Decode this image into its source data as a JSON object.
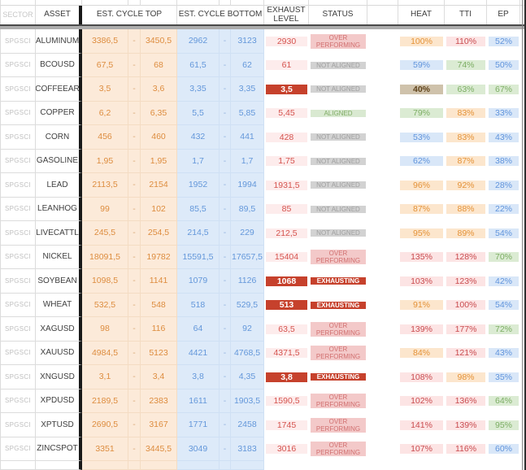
{
  "columns": {
    "sector": "SECTOR",
    "asset": "ASSET",
    "cycle_top": "EST. CYCLE TOP",
    "cycle_bottom": "EST. CYCLE BOTTOM",
    "exhaust": "EXHAUST LEVEL",
    "status": "STATUS",
    "heat": "HEAT",
    "tti": "TTI",
    "ep": "EP"
  },
  "colors": {
    "cycle_top_bg": "#fcead9",
    "cycle_top_text": "#dd8c3e",
    "cycle_bottom_bg": "#ddeaf9",
    "cycle_bottom_text": "#6397da",
    "exhaust_bg": "#fdecec",
    "exhaust_text": "#d5534e",
    "exhaust_alert_bg": "#c6412c",
    "exhaust_alert_text": "#ffffff",
    "status_over_bg": "#f3c9c9",
    "status_over_text": "#d17070",
    "status_not_aligned_bg": "#d2d2d2",
    "status_not_aligned_text": "#9f9f9f",
    "status_aligned_bg": "#d9e9d1",
    "status_aligned_text": "#80ac66",
    "pct_blue_bg": "#d9e7f8",
    "pct_blue_text": "#6094dc",
    "pct_orange_bg": "#fce6cd",
    "pct_orange_text": "#e49237",
    "pct_pink_bg": "#fce4e4",
    "pct_pink_text": "#c94b4f",
    "pct_green_bg": "#dbebd3",
    "pct_green_text": "#7cad63",
    "pct_tan_bg": "#cfc2ab",
    "pct_tan_text": "#5f431a",
    "frozen_divider": "#191919",
    "header_divider_band": "#acacac"
  },
  "rows": [
    {
      "sector": "SPGSCI",
      "asset": "ALUMINUM",
      "top_low": "3386,5",
      "top_sep": "-",
      "top_high": "3450,5",
      "bottom_low": "2962",
      "bottom_sep": "-",
      "bottom_high": "3123",
      "exhaust": "2930",
      "exhaust_style": "pink",
      "status": "OVER PERFORMING",
      "status_style": "over",
      "heat": "100%",
      "heat_style": "orange",
      "tti": "110%",
      "tti_style": "pink",
      "ep": "52%",
      "ep_style": "blue"
    },
    {
      "sector": "SPGSCI",
      "asset": "BCOUSD",
      "top_low": "67,5",
      "top_sep": "-",
      "top_high": "68",
      "bottom_low": "61,5",
      "bottom_sep": "-",
      "bottom_high": "62",
      "exhaust": "61",
      "exhaust_style": "pink",
      "status": "NOT ALIGNED",
      "status_style": "na",
      "heat": "59%",
      "heat_style": "blue",
      "tti": "74%",
      "tti_style": "green",
      "ep": "50%",
      "ep_style": "blue"
    },
    {
      "sector": "SPGSCI",
      "asset": "COFFEEAR",
      "top_low": "3,5",
      "top_sep": "-",
      "top_high": "3,6",
      "bottom_low": "3,35",
      "bottom_sep": "-",
      "bottom_high": "3,35",
      "exhaust": "3,5",
      "exhaust_style": "dark",
      "status": "NOT ALIGNED",
      "status_style": "na",
      "heat": "40%",
      "heat_style": "tan",
      "tti": "63%",
      "tti_style": "green",
      "ep": "67%",
      "ep_style": "green"
    },
    {
      "sector": "SPGSCI",
      "asset": "COPPER",
      "top_low": "6,2",
      "top_sep": "-",
      "top_high": "6,35",
      "bottom_low": "5,5",
      "bottom_sep": "-",
      "bottom_high": "5,85",
      "exhaust": "5,45",
      "exhaust_style": "pink",
      "status": "ALIGNED",
      "status_style": "aligned",
      "heat": "79%",
      "heat_style": "green",
      "tti": "83%",
      "tti_style": "orange",
      "ep": "33%",
      "ep_style": "blue"
    },
    {
      "sector": "SPGSCI",
      "asset": "CORN",
      "top_low": "456",
      "top_sep": "-",
      "top_high": "460",
      "bottom_low": "432",
      "bottom_sep": "-",
      "bottom_high": "441",
      "exhaust": "428",
      "exhaust_style": "pink",
      "status": "NOT ALIGNED",
      "status_style": "na",
      "heat": "53%",
      "heat_style": "blue",
      "tti": "83%",
      "tti_style": "orange",
      "ep": "43%",
      "ep_style": "blue"
    },
    {
      "sector": "SPGSCI",
      "asset": "GASOLINE",
      "top_low": "1,95",
      "top_sep": "-",
      "top_high": "1,95",
      "bottom_low": "1,7",
      "bottom_sep": "-",
      "bottom_high": "1,7",
      "exhaust": "1,75",
      "exhaust_style": "pink",
      "status": "NOT ALIGNED",
      "status_style": "na",
      "heat": "62%",
      "heat_style": "blue",
      "tti": "87%",
      "tti_style": "orange",
      "ep": "38%",
      "ep_style": "blue"
    },
    {
      "sector": "SPGSCI",
      "asset": "LEAD",
      "top_low": "2113,5",
      "top_sep": "-",
      "top_high": "2154",
      "bottom_low": "1952",
      "bottom_sep": "-",
      "bottom_high": "1994",
      "exhaust": "1931,5",
      "exhaust_style": "pink",
      "status": "NOT ALIGNED",
      "status_style": "na",
      "heat": "96%",
      "heat_style": "orange",
      "tti": "92%",
      "tti_style": "orange",
      "ep": "28%",
      "ep_style": "blue"
    },
    {
      "sector": "SPGSCI",
      "asset": "LEANHOG",
      "top_low": "99",
      "top_sep": "-",
      "top_high": "102",
      "bottom_low": "85,5",
      "bottom_sep": "-",
      "bottom_high": "89,5",
      "exhaust": "85",
      "exhaust_style": "pink",
      "status": "NOT ALIGNED",
      "status_style": "na",
      "heat": "87%",
      "heat_style": "orange",
      "tti": "88%",
      "tti_style": "orange",
      "ep": "22%",
      "ep_style": "blue"
    },
    {
      "sector": "SPGSCI",
      "asset": "LIVECATTL",
      "top_low": "245,5",
      "top_sep": "-",
      "top_high": "254,5",
      "bottom_low": "214,5",
      "bottom_sep": "-",
      "bottom_high": "229",
      "exhaust": "212,5",
      "exhaust_style": "pink",
      "status": "NOT ALIGNED",
      "status_style": "na",
      "heat": "95%",
      "heat_style": "orange",
      "tti": "89%",
      "tti_style": "orange",
      "ep": "54%",
      "ep_style": "blue"
    },
    {
      "sector": "SPGSCI",
      "asset": "NICKEL",
      "top_low": "18091,5",
      "top_sep": "-",
      "top_high": "19782",
      "bottom_low": "15591,5",
      "bottom_sep": "-",
      "bottom_high": "17657,5",
      "exhaust": "15404",
      "exhaust_style": "pink",
      "status": "OVER PERFORMING",
      "status_style": "over",
      "heat": "135%",
      "heat_style": "pink",
      "tti": "128%",
      "tti_style": "pink",
      "ep": "70%",
      "ep_style": "green"
    },
    {
      "sector": "SPGSCI",
      "asset": "SOYBEAN",
      "top_low": "1098,5",
      "top_sep": "-",
      "top_high": "1141",
      "bottom_low": "1079",
      "bottom_sep": "-",
      "bottom_high": "1126",
      "exhaust": "1068",
      "exhaust_style": "dark",
      "status": "EXHAUSTING",
      "status_style": "exh",
      "heat": "103%",
      "heat_style": "pink",
      "tti": "123%",
      "tti_style": "pink",
      "ep": "42%",
      "ep_style": "blue"
    },
    {
      "sector": "SPGSCI",
      "asset": "WHEAT",
      "top_low": "532,5",
      "top_sep": "-",
      "top_high": "548",
      "bottom_low": "518",
      "bottom_sep": "-",
      "bottom_high": "529,5",
      "exhaust": "513",
      "exhaust_style": "dark",
      "status": "EXHAUSTING",
      "status_style": "exh",
      "heat": "91%",
      "heat_style": "orange",
      "tti": "100%",
      "tti_style": "pink",
      "ep": "54%",
      "ep_style": "blue"
    },
    {
      "sector": "SPGSCI",
      "asset": "XAGUSD",
      "top_low": "98",
      "top_sep": "-",
      "top_high": "116",
      "bottom_low": "64",
      "bottom_sep": "-",
      "bottom_high": "92",
      "exhaust": "63,5",
      "exhaust_style": "pink",
      "status": "OVER PERFORMING",
      "status_style": "over",
      "heat": "139%",
      "heat_style": "pink",
      "tti": "177%",
      "tti_style": "pink",
      "ep": "72%",
      "ep_style": "green"
    },
    {
      "sector": "SPGSCI",
      "asset": "XAUUSD",
      "top_low": "4984,5",
      "top_sep": "-",
      "top_high": "5123",
      "bottom_low": "4421",
      "bottom_sep": "-",
      "bottom_high": "4768,5",
      "exhaust": "4371,5",
      "exhaust_style": "pink",
      "status": "OVER PERFORMING",
      "status_style": "over",
      "heat": "84%",
      "heat_style": "orange",
      "tti": "121%",
      "tti_style": "pink",
      "ep": "43%",
      "ep_style": "blue"
    },
    {
      "sector": "SPGSCI",
      "asset": "XNGUSD",
      "top_low": "3,1",
      "top_sep": "-",
      "top_high": "3,4",
      "bottom_low": "3,8",
      "bottom_sep": "-",
      "bottom_high": "4,35",
      "exhaust": "3,8",
      "exhaust_style": "dark",
      "status": "EXHAUSTING",
      "status_style": "exh",
      "heat": "108%",
      "heat_style": "pink",
      "tti": "98%",
      "tti_style": "orange",
      "ep": "35%",
      "ep_style": "blue"
    },
    {
      "sector": "SPGSCI",
      "asset": "XPDUSD",
      "top_low": "2189,5",
      "top_sep": "-",
      "top_high": "2383",
      "bottom_low": "1611",
      "bottom_sep": "-",
      "bottom_high": "1903,5",
      "exhaust": "1590,5",
      "exhaust_style": "pink",
      "status": "OVER PERFORMING",
      "status_style": "over",
      "heat": "102%",
      "heat_style": "pink",
      "tti": "136%",
      "tti_style": "pink",
      "ep": "64%",
      "ep_style": "green"
    },
    {
      "sector": "SPGSCI",
      "asset": "XPTUSD",
      "top_low": "2690,5",
      "top_sep": "-",
      "top_high": "3167",
      "bottom_low": "1771",
      "bottom_sep": "-",
      "bottom_high": "2458",
      "exhaust": "1745",
      "exhaust_style": "pink",
      "status": "OVER PERFORMING",
      "status_style": "over",
      "heat": "141%",
      "heat_style": "pink",
      "tti": "139%",
      "tti_style": "pink",
      "ep": "95%",
      "ep_style": "green"
    },
    {
      "sector": "SPGSCI",
      "asset": "ZINCSPOT",
      "top_low": "3351",
      "top_sep": "-",
      "top_high": "3445,5",
      "bottom_low": "3049",
      "bottom_sep": "-",
      "bottom_high": "3183",
      "exhaust": "3016",
      "exhaust_style": "pink",
      "status": "OVER PERFORMING",
      "status_style": "over",
      "heat": "107%",
      "heat_style": "pink",
      "tti": "116%",
      "tti_style": "pink",
      "ep": "60%",
      "ep_style": "blue"
    }
  ],
  "partial_bottom_row": {
    "exhaust_style": "dark",
    "status_style": "exh",
    "heat_style": "pink",
    "tti_style": "pink",
    "ep_style": "green"
  }
}
